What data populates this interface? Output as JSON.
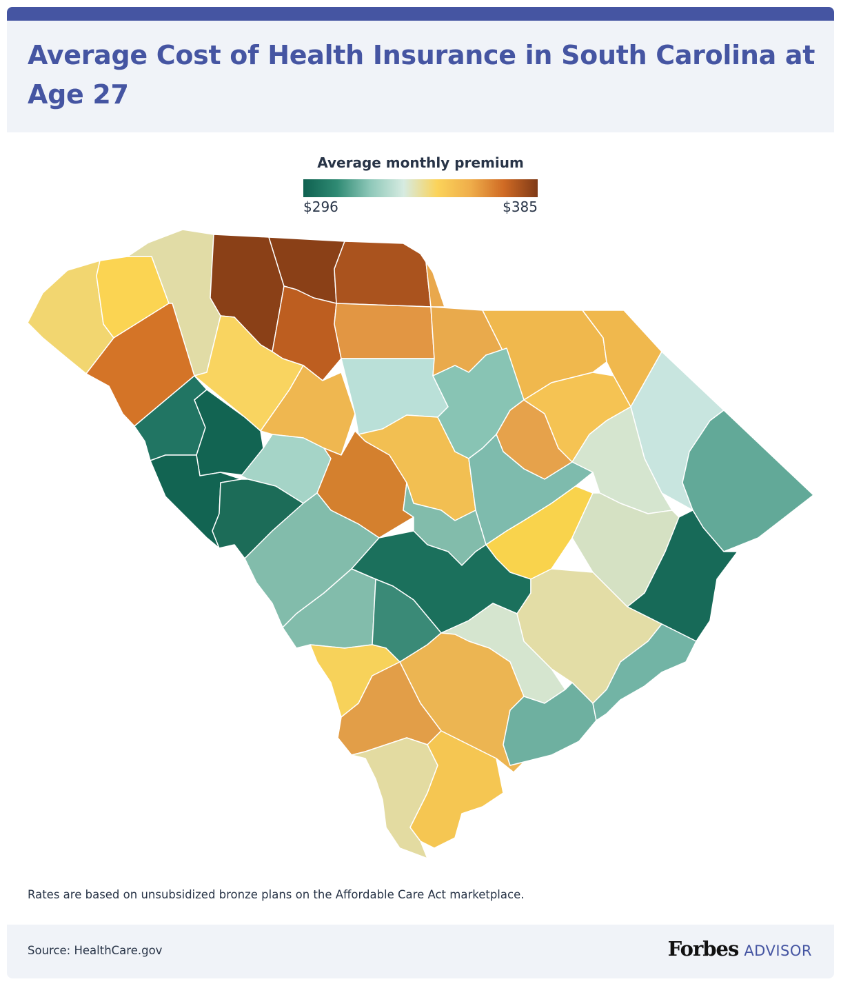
{
  "title": "Average Cost of Health Insurance in South Carolina at Age 27",
  "legend": {
    "title": "Average monthly premium",
    "min_label": "$296",
    "max_label": "$385",
    "gradient_colors": [
      "#0f6150",
      "#2f8a73",
      "#8ec8b9",
      "#d6ebe1",
      "#fbd35a",
      "#efad4a",
      "#cf6a24",
      "#7f3a17"
    ]
  },
  "note": "Rates are based on unsubsidized bronze plans on the Affordable Care Act marketplace.",
  "footer": {
    "source": "Source: HealthCare.gov",
    "brand_name": "Forbes",
    "brand_suffix": "ADVISOR"
  },
  "colors": {
    "title": "#4555a2",
    "panel_background": "#f0f3f8",
    "text": "#283447"
  },
  "map_regions": [
    {
      "name": "oconee",
      "color": "#f2d670"
    },
    {
      "name": "pickens",
      "color": "#fbd452"
    },
    {
      "name": "greenville",
      "color": "#e1dca6"
    },
    {
      "name": "spartanburg",
      "color": "#8a4017"
    },
    {
      "name": "cherokee",
      "color": "#8a4017"
    },
    {
      "name": "york",
      "color": "#aa531e"
    },
    {
      "name": "lancaster",
      "color": "#e9a84c"
    },
    {
      "name": "anderson",
      "color": "#d47427"
    },
    {
      "name": "union",
      "color": "#bd5e20"
    },
    {
      "name": "chester",
      "color": "#e29643"
    },
    {
      "name": "chesterfield",
      "color": "#e9aa4c"
    },
    {
      "name": "marlboro",
      "color": "#f0b84d"
    },
    {
      "name": "dillon",
      "color": "#f0b84d"
    },
    {
      "name": "laurens",
      "color": "#f9d460"
    },
    {
      "name": "fairfield",
      "color": "#bae0d8"
    },
    {
      "name": "kershaw",
      "color": "#88c4b4"
    },
    {
      "name": "darlington",
      "color": "#f5c353"
    },
    {
      "name": "horry",
      "color": "#62a998"
    },
    {
      "name": "abbeville",
      "color": "#217563"
    },
    {
      "name": "greenwood",
      "color": "#126452"
    },
    {
      "name": "mccormick",
      "color": "#126452"
    },
    {
      "name": "newberry",
      "color": "#efb750"
    },
    {
      "name": "lee",
      "color": "#e6a24b"
    },
    {
      "name": "florence",
      "color": "#d5e5cf"
    },
    {
      "name": "marion",
      "color": "#c8e5df"
    },
    {
      "name": "saluda",
      "color": "#a5d4c7"
    },
    {
      "name": "lexington",
      "color": "#d4802e"
    },
    {
      "name": "richland",
      "color": "#f2bf52"
    },
    {
      "name": "sumter",
      "color": "#7ebbad"
    },
    {
      "name": "edgefield",
      "color": "#1c6c58"
    },
    {
      "name": "aiken",
      "color": "#82bcab"
    },
    {
      "name": "calhoun",
      "color": "#82bcab"
    },
    {
      "name": "clarendon",
      "color": "#f9d34c"
    },
    {
      "name": "williamsburg",
      "color": "#d5e1c3"
    },
    {
      "name": "georgetown",
      "color": "#176a58"
    },
    {
      "name": "orangeburg",
      "color": "#1b705c"
    },
    {
      "name": "barnwell",
      "color": "#82bcab"
    },
    {
      "name": "bamberg",
      "color": "#3a8a77"
    },
    {
      "name": "allendale",
      "color": "#f7d25a"
    },
    {
      "name": "dorchester",
      "color": "#d5e5cf"
    },
    {
      "name": "berkeley",
      "color": "#e3dda6"
    },
    {
      "name": "charleston",
      "color": "#6eb0a0"
    },
    {
      "name": "colleton",
      "color": "#ecb552"
    },
    {
      "name": "hampton",
      "color": "#e29e48"
    },
    {
      "name": "jasper",
      "color": "#e3dba1"
    },
    {
      "name": "beaufort",
      "color": "#f5c652"
    },
    {
      "name": "charleston-east",
      "color": "#72b4a5"
    }
  ]
}
